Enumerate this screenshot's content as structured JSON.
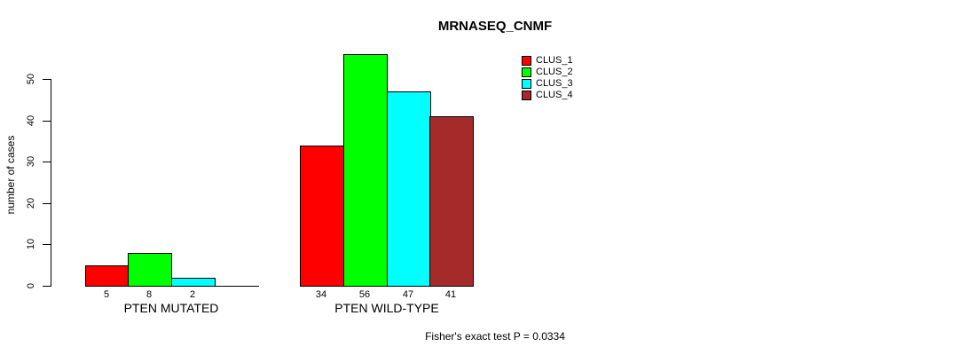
{
  "chart_data": {
    "type": "bar",
    "title": "MRNASEQ_CNMF",
    "ylabel": "number of cases",
    "xlabel": "",
    "footnote": "Fisher's exact test P = 0.0334",
    "categories": [
      "PTEN MUTATED",
      "PTEN WILD-TYPE"
    ],
    "series": [
      {
        "name": "CLUS_1",
        "color": "#FF0000",
        "values": [
          5,
          34
        ]
      },
      {
        "name": "CLUS_2",
        "color": "#00FF00",
        "values": [
          8,
          56
        ]
      },
      {
        "name": "CLUS_3",
        "color": "#00FFFF",
        "values": [
          2,
          47
        ]
      },
      {
        "name": "CLUS_4",
        "color": "#A52A2A",
        "values": [
          0,
          41
        ]
      }
    ],
    "yticks": [
      0,
      10,
      20,
      30,
      40,
      50
    ],
    "ylim": [
      0,
      56
    ],
    "grid": false,
    "legend_position": "top-right",
    "bar_border_color": "#000000",
    "text_color": "#000000",
    "background_color": "#FFFFFF",
    "value_labels_shown": true,
    "zero_values_unlabeled": true
  }
}
